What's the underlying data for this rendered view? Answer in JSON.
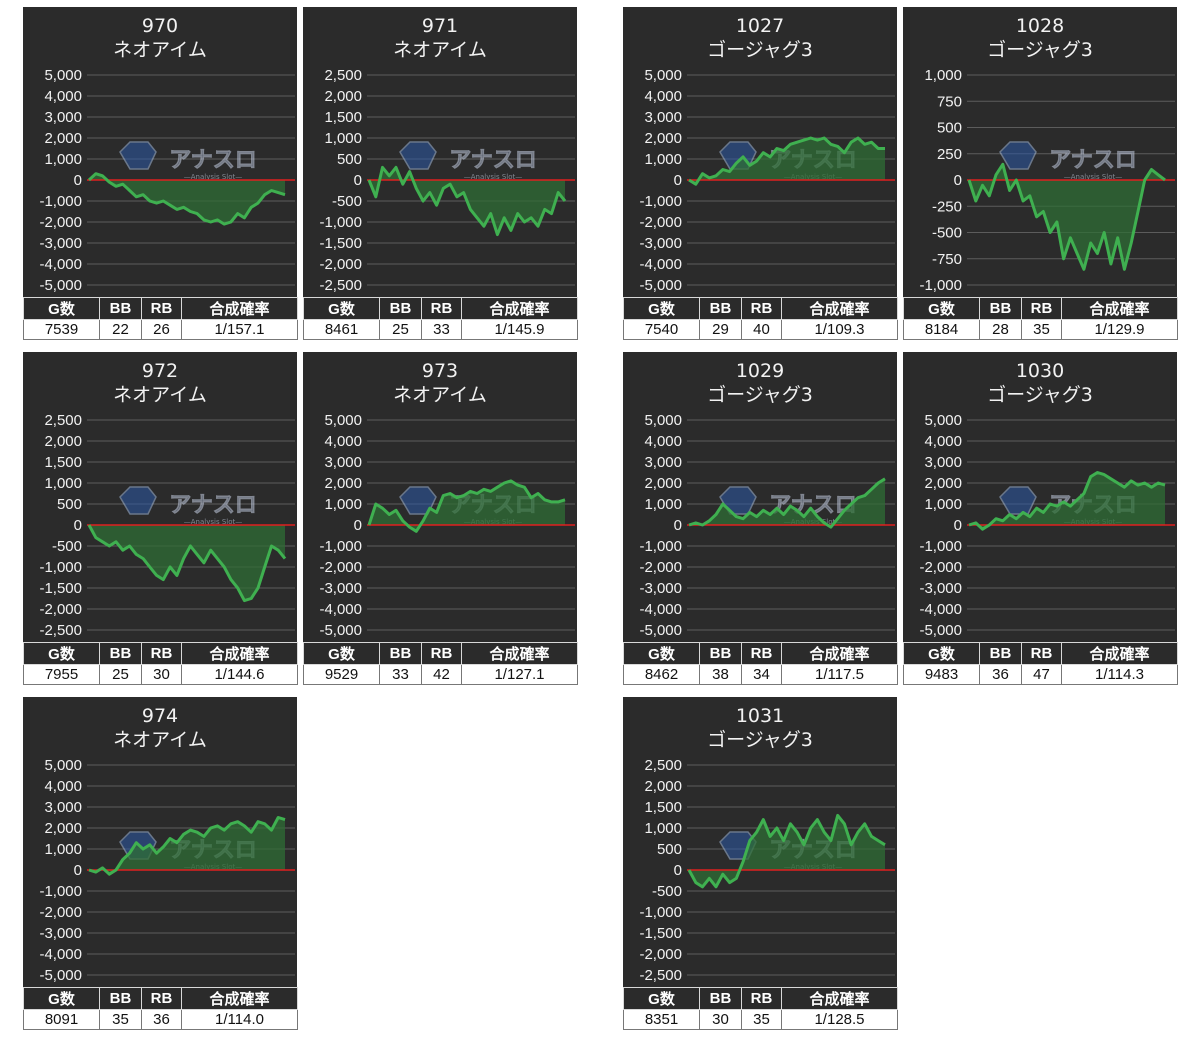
{
  "table_headers": [
    "G数",
    "BB",
    "RB",
    "合成確率"
  ],
  "watermark": {
    "brand": "アナスロ",
    "tagline": "—Analysis Slot—"
  },
  "colors": {
    "panel_bg": "#2b2b2b",
    "line": "#3fb050",
    "fill": "#2f6e36",
    "zero_line": "#e02020",
    "grid": "#5c5c5c",
    "text": "#f2f2f2"
  },
  "chart_data": [
    {
      "type": "area",
      "title": "970",
      "subtitle": "ネオアイム",
      "ylim": [
        -5000,
        5000
      ],
      "y_ticks": [
        "5,000",
        "4,000",
        "3,000",
        "2,000",
        "1,000",
        "0",
        "-1,000",
        "-2,000",
        "-3,000",
        "-4,000",
        "-5,000"
      ],
      "values": [
        0,
        300,
        200,
        -100,
        -300,
        -200,
        -500,
        -800,
        -700,
        -1000,
        -1100,
        -1000,
        -1200,
        -1400,
        -1300,
        -1500,
        -1600,
        -1900,
        -2000,
        -1900,
        -2100,
        -2000,
        -1600,
        -1800,
        -1300,
        -1100,
        -700,
        -500,
        -600,
        -700
      ],
      "stats": {
        "g": "7539",
        "bb": "22",
        "rb": "26",
        "rate": "1/157.1"
      }
    },
    {
      "type": "area",
      "title": "971",
      "subtitle": "ネオアイム",
      "ylim": [
        -2500,
        2500
      ],
      "y_ticks": [
        "2,500",
        "2,000",
        "1,500",
        "1,000",
        "500",
        "0",
        "-500",
        "-1,000",
        "-1,500",
        "-2,000",
        "-2,500"
      ],
      "values": [
        0,
        -400,
        300,
        100,
        300,
        -100,
        200,
        -200,
        -500,
        -300,
        -600,
        -200,
        -100,
        -400,
        -300,
        -700,
        -900,
        -1100,
        -800,
        -1300,
        -900,
        -1200,
        -800,
        -1000,
        -900,
        -1100,
        -700,
        -800,
        -300,
        -500
      ],
      "stats": {
        "g": "8461",
        "bb": "25",
        "rb": "33",
        "rate": "1/145.9"
      }
    },
    {
      "type": "area",
      "title": "1027",
      "subtitle": "ゴージャグ3",
      "ylim": [
        -5000,
        5000
      ],
      "y_ticks": [
        "5,000",
        "4,000",
        "3,000",
        "2,000",
        "1,000",
        "0",
        "-1,000",
        "-2,000",
        "-3,000",
        "-4,000",
        "-5,000"
      ],
      "values": [
        0,
        -200,
        300,
        100,
        200,
        500,
        400,
        800,
        1100,
        700,
        900,
        1300,
        1100,
        1500,
        1400,
        1700,
        1800,
        1900,
        2000,
        1900,
        2000,
        1700,
        1600,
        1300,
        1800,
        2000,
        1700,
        1800,
        1500,
        1500
      ],
      "stats": {
        "g": "7540",
        "bb": "29",
        "rb": "40",
        "rate": "1/109.3"
      }
    },
    {
      "type": "area",
      "title": "1028",
      "subtitle": "ゴージャグ3",
      "ylim": [
        -1000,
        1000
      ],
      "y_ticks": [
        "1,000",
        "750",
        "500",
        "250",
        "0",
        "-250",
        "-500",
        "-750",
        "-1,000"
      ],
      "values": [
        0,
        -200,
        -50,
        -150,
        50,
        150,
        -100,
        0,
        -200,
        -150,
        -350,
        -300,
        -500,
        -400,
        -750,
        -550,
        -700,
        -850,
        -600,
        -700,
        -500,
        -800,
        -550,
        -850,
        -600,
        -300,
        0,
        100,
        50,
        0
      ],
      "stats": {
        "g": "8184",
        "bb": "28",
        "rb": "35",
        "rate": "1/129.9"
      }
    },
    {
      "type": "area",
      "title": "972",
      "subtitle": "ネオアイム",
      "ylim": [
        -2500,
        2500
      ],
      "y_ticks": [
        "2,500",
        "2,000",
        "1,500",
        "1,000",
        "500",
        "0",
        "-500",
        "-1,000",
        "-1,500",
        "-2,000",
        "-2,500"
      ],
      "values": [
        0,
        -300,
        -400,
        -500,
        -400,
        -600,
        -500,
        -700,
        -800,
        -1000,
        -1200,
        -1300,
        -1000,
        -1200,
        -800,
        -500,
        -700,
        -900,
        -600,
        -800,
        -1000,
        -1300,
        -1500,
        -1800,
        -1750,
        -1500,
        -1000,
        -500,
        -600,
        -800
      ],
      "stats": {
        "g": "7955",
        "bb": "25",
        "rb": "30",
        "rate": "1/144.6"
      }
    },
    {
      "type": "area",
      "title": "973",
      "subtitle": "ネオアイム",
      "ylim": [
        -5000,
        5000
      ],
      "y_ticks": [
        "5,000",
        "4,000",
        "3,000",
        "2,000",
        "1,000",
        "0",
        "-1,000",
        "-2,000",
        "-3,000",
        "-4,000",
        "-5,000"
      ],
      "values": [
        0,
        1000,
        800,
        500,
        700,
        200,
        -100,
        -300,
        200,
        800,
        600,
        1400,
        1500,
        1300,
        1400,
        1600,
        1500,
        1700,
        1600,
        1800,
        2000,
        2100,
        1900,
        1800,
        1300,
        1500,
        1200,
        1100,
        1100,
        1200
      ],
      "stats": {
        "g": "9529",
        "bb": "33",
        "rb": "42",
        "rate": "1/127.1"
      }
    },
    {
      "type": "area",
      "title": "1029",
      "subtitle": "ゴージャグ3",
      "ylim": [
        -5000,
        5000
      ],
      "y_ticks": [
        "5,000",
        "4,000",
        "3,000",
        "2,000",
        "1,000",
        "0",
        "-1,000",
        "-2,000",
        "-3,000",
        "-4,000",
        "-5,000"
      ],
      "values": [
        0,
        100,
        0,
        200,
        500,
        1000,
        700,
        400,
        300,
        600,
        400,
        700,
        500,
        800,
        500,
        900,
        700,
        400,
        800,
        400,
        100,
        -100,
        300,
        700,
        1000,
        1300,
        1400,
        1700,
        2000,
        2200
      ],
      "stats": {
        "g": "8462",
        "bb": "38",
        "rb": "34",
        "rate": "1/117.5"
      }
    },
    {
      "type": "area",
      "title": "1030",
      "subtitle": "ゴージャグ3",
      "ylim": [
        -5000,
        5000
      ],
      "y_ticks": [
        "5,000",
        "4,000",
        "3,000",
        "2,000",
        "1,000",
        "0",
        "-1,000",
        "-2,000",
        "-3,000",
        "-4,000",
        "-5,000"
      ],
      "values": [
        0,
        100,
        -200,
        0,
        300,
        200,
        500,
        300,
        600,
        400,
        800,
        600,
        1000,
        900,
        1100,
        900,
        1200,
        1500,
        2300,
        2500,
        2400,
        2200,
        2000,
        1800,
        2100,
        1900,
        2000,
        1800,
        2000,
        1900
      ],
      "stats": {
        "g": "9483",
        "bb": "36",
        "rb": "47",
        "rate": "1/114.3"
      }
    },
    {
      "type": "area",
      "title": "974",
      "subtitle": "ネオアイム",
      "ylim": [
        -5000,
        5000
      ],
      "y_ticks": [
        "5,000",
        "4,000",
        "3,000",
        "2,000",
        "1,000",
        "0",
        "-1,000",
        "-2,000",
        "-3,000",
        "-4,000",
        "-5,000"
      ],
      "values": [
        0,
        -100,
        100,
        -200,
        0,
        500,
        800,
        1300,
        1000,
        1200,
        800,
        1100,
        1500,
        1300,
        1700,
        1900,
        1800,
        1600,
        2000,
        2100,
        1900,
        2200,
        2300,
        2100,
        1800,
        2300,
        2200,
        1900,
        2500,
        2400
      ],
      "stats": {
        "g": "8091",
        "bb": "35",
        "rb": "36",
        "rate": "1/114.0"
      }
    },
    {
      "type": "area",
      "title": "1031",
      "subtitle": "ゴージャグ3",
      "ylim": [
        -2500,
        2500
      ],
      "y_ticks": [
        "2,500",
        "2,000",
        "1,500",
        "1,000",
        "500",
        "0",
        "-500",
        "-1,000",
        "-1,500",
        "-2,000",
        "-2,500"
      ],
      "values": [
        0,
        -300,
        -400,
        -200,
        -400,
        -100,
        -300,
        -200,
        200,
        700,
        900,
        1200,
        800,
        1000,
        700,
        1100,
        900,
        600,
        1000,
        1200,
        900,
        700,
        1300,
        1100,
        600,
        900,
        1100,
        800,
        700,
        600
      ],
      "stats": {
        "g": "8351",
        "bb": "30",
        "rb": "35",
        "rate": "1/128.5"
      }
    }
  ]
}
